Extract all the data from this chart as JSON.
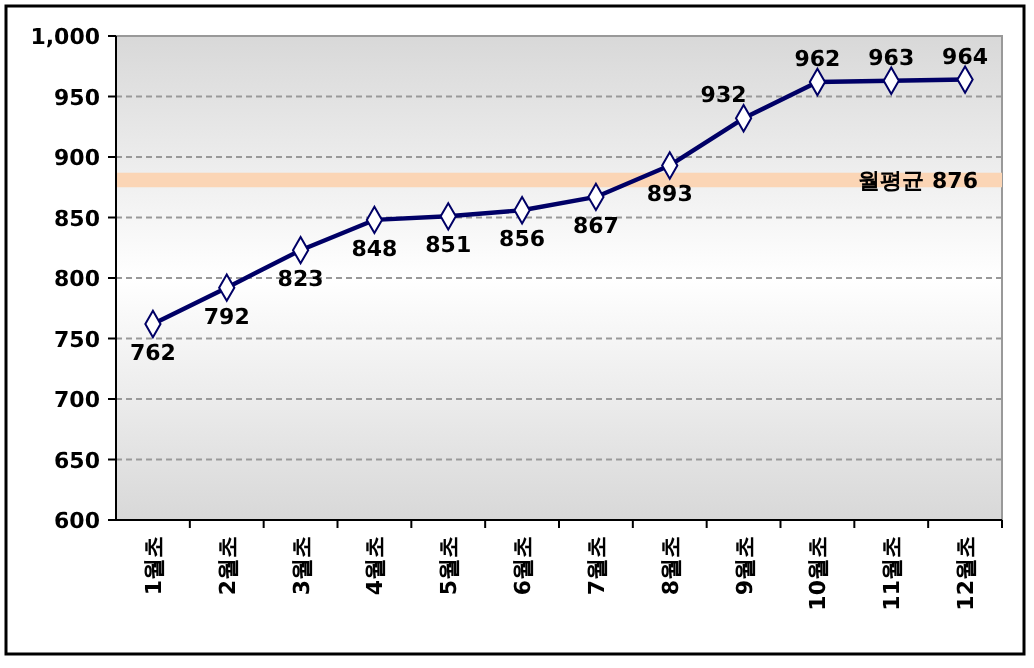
{
  "chart_data": {
    "type": "line",
    "categories": [
      "1월초",
      "2월초",
      "3월초",
      "4월초",
      "5월초",
      "6월초",
      "7월초",
      "8월초",
      "9월초",
      "10월초",
      "11월초",
      "12월초"
    ],
    "series": [
      {
        "color": "#000066",
        "values": [
          762,
          792,
          823,
          848,
          851,
          856,
          867,
          893,
          932,
          962,
          963,
          964
        ]
      }
    ],
    "ylim": [
      600,
      1000
    ],
    "yticks": [
      600,
      650,
      700,
      750,
      800,
      850,
      900,
      950,
      {
        "value": 1000,
        "label": "1,000"
      }
    ],
    "grid": "y",
    "marker": "diamond",
    "line_style": "solid",
    "data_labels": true,
    "bands": [
      {
        "axis": "y",
        "from": 875,
        "to": 887,
        "label": "월평균 876",
        "color": "#fbd5b5"
      }
    ]
  }
}
